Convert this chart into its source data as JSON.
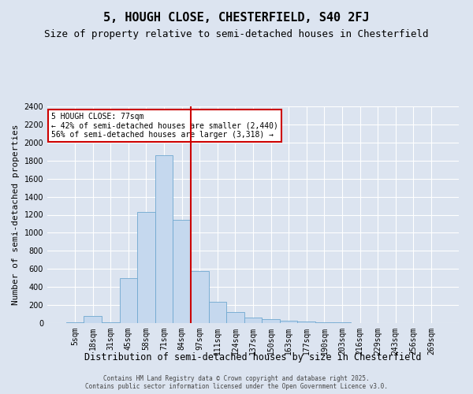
{
  "title": "5, HOUGH CLOSE, CHESTERFIELD, S40 2FJ",
  "subtitle": "Size of property relative to semi-detached houses in Chesterfield",
  "xlabel": "Distribution of semi-detached houses by size in Chesterfield",
  "ylabel": "Number of semi-detached properties",
  "categories": [
    "5sqm",
    "18sqm",
    "31sqm",
    "45sqm",
    "58sqm",
    "71sqm",
    "84sqm",
    "97sqm",
    "111sqm",
    "124sqm",
    "137sqm",
    "150sqm",
    "163sqm",
    "177sqm",
    "190sqm",
    "203sqm",
    "216sqm",
    "229sqm",
    "243sqm",
    "256sqm",
    "269sqm"
  ],
  "values": [
    5,
    80,
    12,
    500,
    1230,
    1860,
    1140,
    575,
    240,
    120,
    60,
    45,
    30,
    15,
    8,
    5,
    3,
    2,
    1,
    1,
    0
  ],
  "bar_color": "#c5d8ee",
  "bar_edge_color": "#6fa8d0",
  "vline_x": 6.5,
  "vline_color": "#cc0000",
  "annotation_text": "5 HOUGH CLOSE: 77sqm\n← 42% of semi-detached houses are smaller (2,440)\n56% of semi-detached houses are larger (3,318) →",
  "annotation_box_color": "#ffffff",
  "annotation_box_edge_color": "#cc0000",
  "ylim": [
    0,
    2400
  ],
  "yticks": [
    0,
    200,
    400,
    600,
    800,
    1000,
    1200,
    1400,
    1600,
    1800,
    2000,
    2200,
    2400
  ],
  "background_color": "#dce4f0",
  "plot_background_color": "#dce4f0",
  "footer_text": "Contains HM Land Registry data © Crown copyright and database right 2025.\nContains public sector information licensed under the Open Government Licence v3.0.",
  "title_fontsize": 11,
  "subtitle_fontsize": 9,
  "xlabel_fontsize": 8.5,
  "ylabel_fontsize": 8,
  "tick_fontsize": 7,
  "annot_fontsize": 7,
  "footer_fontsize": 5.5
}
